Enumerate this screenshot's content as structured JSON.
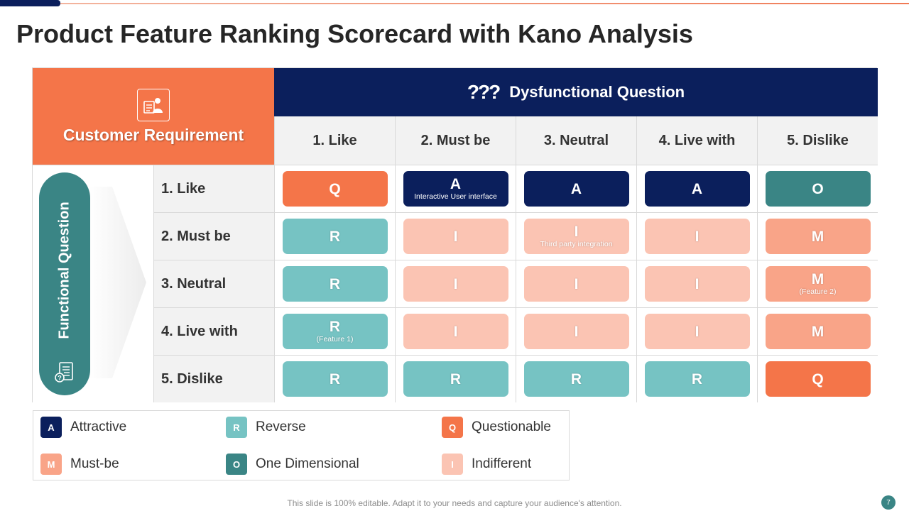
{
  "title": "Product Feature Ranking Scorecard with Kano Analysis",
  "customer_requirement": {
    "label": "Customer Requirement",
    "icon": "customer-profile-icon"
  },
  "dysfunctional": {
    "label": "Dysfunctional Question",
    "icon_text": "???"
  },
  "functional": {
    "label": "Functional Question",
    "icon": "document-question-icon"
  },
  "columns": [
    "1. Like",
    "2. Must be",
    "3. Neutral",
    "4. Live with",
    "5. Dislike"
  ],
  "rows": [
    {
      "label": "1. Like",
      "cells": [
        {
          "code": "Q",
          "note": ""
        },
        {
          "code": "A",
          "note": "Interactive User interface"
        },
        {
          "code": "A",
          "note": ""
        },
        {
          "code": "A",
          "note": ""
        },
        {
          "code": "O",
          "note": ""
        }
      ]
    },
    {
      "label": "2. Must be",
      "cells": [
        {
          "code": "R",
          "note": ""
        },
        {
          "code": "I",
          "note": ""
        },
        {
          "code": "I",
          "note": "Third party integration"
        },
        {
          "code": "I",
          "note": ""
        },
        {
          "code": "M",
          "note": ""
        }
      ]
    },
    {
      "label": "3. Neutral",
      "cells": [
        {
          "code": "R",
          "note": ""
        },
        {
          "code": "I",
          "note": ""
        },
        {
          "code": "I",
          "note": ""
        },
        {
          "code": "I",
          "note": ""
        },
        {
          "code": "M",
          "note": "(Feature 2)"
        }
      ]
    },
    {
      "label": "4. Live with",
      "cells": [
        {
          "code": "R",
          "note": "(Feature 1)"
        },
        {
          "code": "I",
          "note": ""
        },
        {
          "code": "I",
          "note": ""
        },
        {
          "code": "I",
          "note": ""
        },
        {
          "code": "M",
          "note": ""
        }
      ]
    },
    {
      "label": "5. Dislike",
      "cells": [
        {
          "code": "R",
          "note": ""
        },
        {
          "code": "R",
          "note": ""
        },
        {
          "code": "R",
          "note": ""
        },
        {
          "code": "R",
          "note": ""
        },
        {
          "code": "Q",
          "note": ""
        }
      ]
    }
  ],
  "colors": {
    "A": "#0b1f5c",
    "O": "#3a8585",
    "Q": "#f47549",
    "R": "#76c3c3",
    "I": "#fbc4b3",
    "M": "#f9a488"
  },
  "legend": [
    {
      "code": "A",
      "label": "Attractive"
    },
    {
      "code": "R",
      "label": "Reverse"
    },
    {
      "code": "Q",
      "label": "Questionable"
    },
    {
      "code": "M",
      "label": "Must-be"
    },
    {
      "code": "O",
      "label": "One Dimensional"
    },
    {
      "code": "I",
      "label": "Indifferent"
    }
  ],
  "footer": "This slide is 100% editable. Adapt it to your needs and capture your audience's attention.",
  "page_number": "7"
}
